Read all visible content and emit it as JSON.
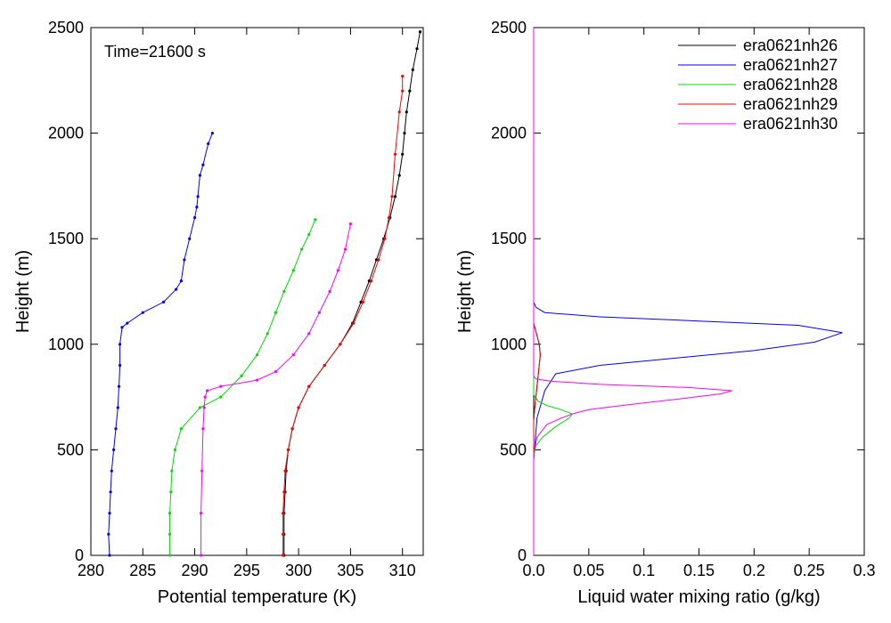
{
  "chart_data": [
    {
      "type": "line",
      "xlabel": "Potential temperature (K)",
      "ylabel": "Height (m)",
      "annotation": "Time=21600 s",
      "xlim": [
        280,
        312
      ],
      "ylim": [
        0,
        2500
      ],
      "xticks": [
        "280",
        "285",
        "290",
        "295",
        "300",
        "305",
        "310"
      ],
      "yticks": [
        "0",
        "500",
        "1000",
        "1500",
        "2000",
        "2500"
      ],
      "grid": false,
      "markers": true,
      "series": [
        {
          "color": "#000000",
          "x": [
            298.6,
            298.6,
            298.6,
            298.7,
            298.8,
            299.0,
            299.4,
            300.0,
            301.0,
            302.5,
            304.0,
            305.2,
            306.0,
            306.8,
            307.5,
            308.2,
            308.8,
            309.3,
            309.7,
            310.0,
            310.2,
            310.4,
            310.7,
            311.0,
            311.4,
            311.7
          ],
          "y": [
            0,
            100,
            200,
            300,
            400,
            500,
            600,
            700,
            800,
            900,
            1000,
            1100,
            1200,
            1300,
            1400,
            1500,
            1600,
            1700,
            1800,
            1900,
            2000,
            2100,
            2200,
            2300,
            2400,
            2480
          ]
        },
        {
          "color": "#0000ff",
          "x": [
            281.8,
            281.7,
            281.8,
            281.9,
            282.0,
            282.2,
            282.4,
            282.6,
            282.7,
            282.8,
            282.8,
            283.0,
            283.5,
            285.0,
            287.0,
            288.2,
            288.7,
            289.0,
            289.5,
            290.0,
            290.2,
            290.3,
            290.5,
            290.8,
            291.3,
            291.7
          ],
          "y": [
            0,
            100,
            200,
            300,
            400,
            500,
            600,
            700,
            800,
            900,
            1000,
            1080,
            1100,
            1150,
            1200,
            1260,
            1300,
            1400,
            1500,
            1600,
            1650,
            1700,
            1800,
            1850,
            1950,
            2000
          ]
        },
        {
          "color": "#00dd00",
          "x": [
            287.6,
            287.6,
            287.6,
            287.7,
            287.8,
            288.1,
            288.7,
            290.5,
            292.5,
            294.5,
            296.0,
            297.0,
            297.8,
            298.6,
            299.5,
            300.3,
            301.0,
            301.6
          ],
          "y": [
            0,
            100,
            200,
            300,
            400,
            500,
            600,
            700,
            750,
            850,
            950,
            1050,
            1150,
            1250,
            1350,
            1450,
            1520,
            1590
          ]
        },
        {
          "color": "#ff0000",
          "x": [
            298.5,
            298.5,
            298.5,
            298.6,
            298.7,
            299.0,
            299.4,
            300.0,
            301.0,
            302.5,
            304.0,
            305.3,
            306.2,
            307.0,
            307.7,
            308.3,
            308.7,
            309.0,
            309.3,
            309.7,
            310.0,
            310.0
          ],
          "y": [
            0,
            100,
            200,
            300,
            400,
            500,
            600,
            700,
            800,
            900,
            1000,
            1100,
            1200,
            1300,
            1400,
            1500,
            1600,
            1700,
            1900,
            2100,
            2200,
            2270
          ]
        },
        {
          "color": "#ff00ff",
          "x": [
            290.6,
            290.6,
            290.7,
            290.8,
            290.9,
            291.0,
            291.2,
            292.5,
            296.0,
            297.8,
            299.5,
            301.0,
            302.0,
            303.0,
            303.8,
            304.5,
            305.0
          ],
          "y": [
            0,
            200,
            400,
            600,
            700,
            750,
            780,
            800,
            830,
            870,
            950,
            1050,
            1150,
            1250,
            1350,
            1450,
            1570
          ]
        }
      ]
    },
    {
      "type": "line",
      "xlabel": "Liquid water mixing ratio (g/kg)",
      "ylabel": "Height (m)",
      "xlim": [
        0,
        0.3
      ],
      "ylim": [
        0,
        2500
      ],
      "xticks": [
        "0.0",
        "0.05",
        "0.1",
        "0.15",
        "0.2",
        "0.25",
        "0.3"
      ],
      "yticks": [
        "0",
        "500",
        "1000",
        "1500",
        "2000",
        "2500"
      ],
      "legend_position": "top-right",
      "grid": false,
      "markers": false,
      "series": [
        {
          "name": "era0621nh26",
          "color": "#000000",
          "x": [
            0,
            0,
            0.001,
            0.003,
            0.005,
            0.006,
            0.005,
            0.002,
            0,
            0
          ],
          "y": [
            0,
            640,
            700,
            800,
            900,
            950,
            1000,
            1060,
            1100,
            2500
          ]
        },
        {
          "name": "era0621nh27",
          "color": "#0000ff",
          "x": [
            0,
            0,
            0.003,
            0.01,
            0.02,
            0.06,
            0.12,
            0.2,
            0.255,
            0.28,
            0.24,
            0.15,
            0.06,
            0.01,
            0.002,
            0,
            0
          ],
          "y": [
            0,
            450,
            650,
            780,
            860,
            900,
            930,
            970,
            1010,
            1055,
            1090,
            1110,
            1130,
            1150,
            1175,
            1200,
            2500
          ]
        },
        {
          "name": "era0621nh28",
          "color": "#00dd00",
          "x": [
            0,
            0,
            0.002,
            0.008,
            0.02,
            0.032,
            0.035,
            0.025,
            0.012,
            0.004,
            0,
            0
          ],
          "y": [
            0,
            470,
            520,
            560,
            610,
            650,
            670,
            690,
            710,
            730,
            760,
            2500
          ]
        },
        {
          "name": "era0621nh29",
          "color": "#ff0000",
          "x": [
            0,
            0,
            0.001,
            0.003,
            0.005,
            0.006,
            0.005,
            0.002,
            0,
            0
          ],
          "y": [
            0,
            640,
            700,
            800,
            900,
            950,
            1000,
            1060,
            1100,
            2500
          ]
        },
        {
          "name": "era0621nh30",
          "color": "#ff00ff",
          "x": [
            0,
            0,
            0.003,
            0.012,
            0.025,
            0.035,
            0.05,
            0.08,
            0.13,
            0.17,
            0.18,
            0.14,
            0.06,
            0.015,
            0.002,
            0,
            0
          ],
          "y": [
            0,
            480,
            560,
            620,
            650,
            670,
            690,
            710,
            740,
            765,
            780,
            795,
            810,
            825,
            835,
            850,
            2500
          ]
        }
      ]
    }
  ]
}
